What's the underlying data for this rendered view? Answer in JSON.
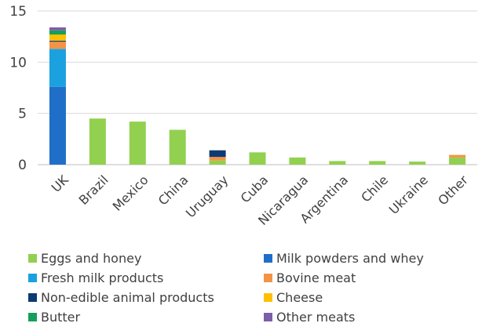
{
  "chart_data": {
    "type": "bar",
    "stacked": true,
    "title": "",
    "xlabel": "",
    "ylabel": "",
    "ylim": [
      0,
      15
    ],
    "yticks": [
      0,
      5,
      10,
      15
    ],
    "grid": true,
    "legend_position": "bottom",
    "categories": [
      "UK",
      "Brazil",
      "Mexico",
      "China",
      "Uruguay",
      "Cuba",
      "Nicaragua",
      "Argentina",
      "Chile",
      "Ukraine",
      "Other"
    ],
    "series": [
      {
        "name": "Eggs and honey",
        "color": "#92D050",
        "values": [
          0,
          4.5,
          4.2,
          3.4,
          0.4,
          1.2,
          0.7,
          0.35,
          0.35,
          0.3,
          0.7
        ]
      },
      {
        "name": "Milk powders and whey",
        "color": "#1F6FC9",
        "values": [
          7.6,
          0,
          0,
          0,
          0,
          0,
          0,
          0,
          0,
          0,
          0
        ]
      },
      {
        "name": "Fresh milk products",
        "color": "#1BA1DF",
        "values": [
          3.7,
          0,
          0,
          0,
          0,
          0,
          0,
          0,
          0,
          0,
          0
        ]
      },
      {
        "name": "Bovine meat",
        "color": "#F29447",
        "values": [
          0.7,
          0,
          0,
          0,
          0.35,
          0,
          0,
          0,
          0,
          0,
          0.25
        ]
      },
      {
        "name": "Non-edible animal products",
        "color": "#0E3A73",
        "values": [
          0.1,
          0,
          0,
          0,
          0.65,
          0,
          0,
          0,
          0,
          0,
          0
        ]
      },
      {
        "name": "Cheese",
        "color": "#FFC000",
        "values": [
          0.6,
          0,
          0,
          0,
          0,
          0,
          0,
          0,
          0,
          0,
          0
        ]
      },
      {
        "name": "Butter",
        "color": "#14A05A",
        "values": [
          0.4,
          0,
          0,
          0,
          0,
          0,
          0,
          0,
          0,
          0,
          0
        ]
      },
      {
        "name": "Other meats",
        "color": "#7B5FA8",
        "values": [
          0.3,
          0,
          0,
          0,
          0,
          0,
          0,
          0,
          0,
          0,
          0
        ]
      }
    ]
  },
  "legend": {
    "items": [
      "Eggs and honey",
      "Milk powders and whey",
      "Fresh milk products",
      "Bovine meat",
      "Non-edible animal products",
      "Cheese",
      "Butter",
      "Other meats"
    ]
  }
}
